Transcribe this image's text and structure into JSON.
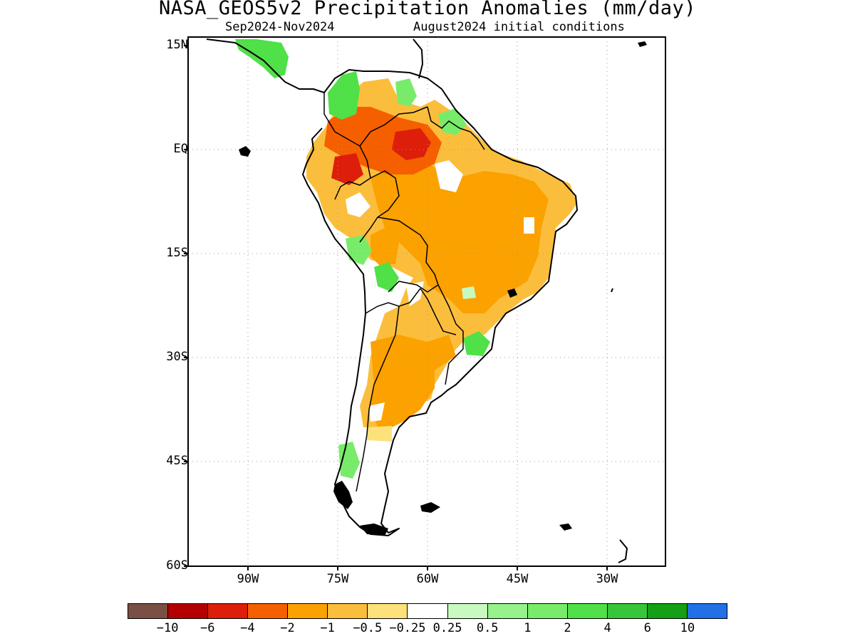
{
  "title": "NASA_GEOS5v2 Precipitation Anomalies (mm/day)",
  "subtitle_left": "Sep2024-Nov2024",
  "subtitle_right": "August2024 initial conditions",
  "lat_labels": [
    "15N",
    "EQ",
    "15S",
    "30S",
    "45S",
    "60S"
  ],
  "lon_labels": [
    "90W",
    "75W",
    "60W",
    "45W",
    "30W"
  ],
  "colorbar": {
    "colors": [
      "#7a5045",
      "#b40000",
      "#dc1e0a",
      "#f55f00",
      "#fba100",
      "#fbbe3c",
      "#fde27c",
      "#ffffff",
      "#c8fac0",
      "#96f28a",
      "#78ec6a",
      "#50e048",
      "#36c63a",
      "#14a014",
      "#2270e6"
    ],
    "labels": [
      "-10",
      "-6",
      "-4",
      "-2",
      "-1",
      "-0.5",
      "-0.25",
      "0.25",
      "0.5",
      "1",
      "2",
      "4",
      "6",
      "10"
    ]
  }
}
